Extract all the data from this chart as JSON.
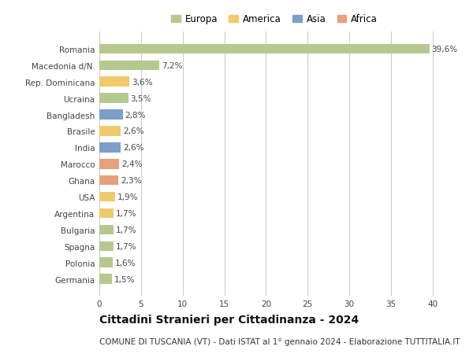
{
  "countries": [
    "Romania",
    "Macedonia d/N.",
    "Rep. Dominicana",
    "Ucraina",
    "Bangladesh",
    "Brasile",
    "India",
    "Marocco",
    "Ghana",
    "USA",
    "Argentina",
    "Bulgaria",
    "Spagna",
    "Polonia",
    "Germania"
  ],
  "values": [
    39.6,
    7.2,
    3.6,
    3.5,
    2.8,
    2.6,
    2.6,
    2.4,
    2.3,
    1.9,
    1.7,
    1.7,
    1.7,
    1.6,
    1.5
  ],
  "labels": [
    "39,6%",
    "7,2%",
    "3,6%",
    "3,5%",
    "2,8%",
    "2,6%",
    "2,6%",
    "2,4%",
    "2,3%",
    "1,9%",
    "1,7%",
    "1,7%",
    "1,7%",
    "1,6%",
    "1,5%"
  ],
  "continents": [
    "Europa",
    "Europa",
    "America",
    "Europa",
    "Asia",
    "America",
    "Asia",
    "Africa",
    "Africa",
    "America",
    "America",
    "Europa",
    "Europa",
    "Europa",
    "Europa"
  ],
  "continent_colors": {
    "Europa": "#b5c98e",
    "America": "#f0c96a",
    "Asia": "#7b9fc7",
    "Africa": "#e8a07a"
  },
  "legend_order": [
    "Europa",
    "America",
    "Asia",
    "Africa"
  ],
  "title": "Cittadini Stranieri per Cittadinanza - 2024",
  "subtitle": "COMUNE DI TUSCANIA (VT) - Dati ISTAT al 1° gennaio 2024 - Elaborazione TUTTITALIA.IT",
  "xlim": [
    0,
    42
  ],
  "xticks": [
    0,
    5,
    10,
    15,
    20,
    25,
    30,
    35,
    40
  ],
  "bg_color": "#ffffff",
  "grid_color": "#cccccc",
  "bar_height": 0.6,
  "label_fontsize": 7.5,
  "tick_fontsize": 7.5,
  "title_fontsize": 10,
  "subtitle_fontsize": 7.5,
  "legend_fontsize": 8.5
}
